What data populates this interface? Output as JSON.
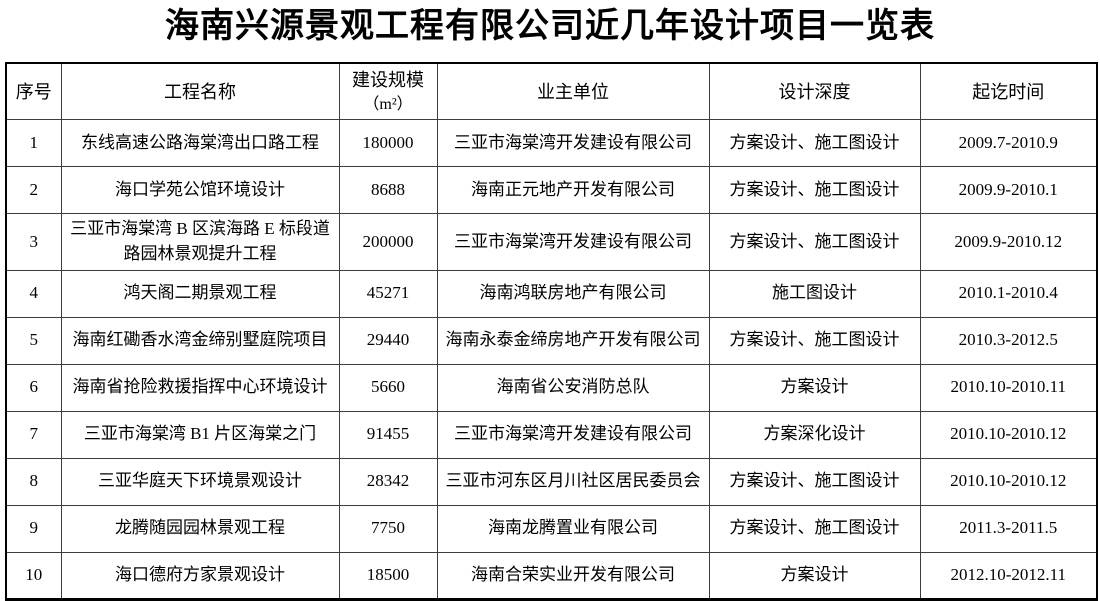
{
  "title": "海南兴源景观工程有限公司近几年设计项目一览表",
  "table": {
    "headers": [
      {
        "label": "序号"
      },
      {
        "label": "工程名称"
      },
      {
        "label": "建设规模",
        "sub": "（m²）"
      },
      {
        "label": "业主单位"
      },
      {
        "label": "设计深度"
      },
      {
        "label": "起讫时间"
      }
    ],
    "rows": [
      {
        "no": "1",
        "name": "东线高速公路海棠湾出口路工程",
        "scale": "180000",
        "owner": "三亚市海棠湾开发建设有限公司",
        "depth": "方案设计、施工图设计",
        "period": "2009.7-2010.9"
      },
      {
        "no": "2",
        "name": "海口学苑公馆环境设计",
        "scale": "8688",
        "owner": "海南正元地产开发有限公司",
        "depth": "方案设计、施工图设计",
        "period": "2009.9-2010.1"
      },
      {
        "no": "3",
        "name": "三亚市海棠湾 B 区滨海路 E 标段道路园林景观提升工程",
        "scale": "200000",
        "owner": "三亚市海棠湾开发建设有限公司",
        "depth": "方案设计、施工图设计",
        "period": "2009.9-2010.12"
      },
      {
        "no": "4",
        "name": "鸿天阁二期景观工程",
        "scale": "45271",
        "owner": "海南鸿联房地产有限公司",
        "depth": "施工图设计",
        "period": "2010.1-2010.4"
      },
      {
        "no": "5",
        "name": "海南红磡香水湾金缔别墅庭院项目",
        "scale": "29440",
        "owner": "海南永泰金缔房地产开发有限公司",
        "depth": "方案设计、施工图设计",
        "period": "2010.3-2012.5"
      },
      {
        "no": "6",
        "name": "海南省抢险救援指挥中心环境设计",
        "scale": "5660",
        "owner": "海南省公安消防总队",
        "depth": "方案设计",
        "period": "2010.10-2010.11"
      },
      {
        "no": "7",
        "name": "三亚市海棠湾 B1 片区海棠之门",
        "scale": "91455",
        "owner": "三亚市海棠湾开发建设有限公司",
        "depth": "方案深化设计",
        "period": "2010.10-2010.12"
      },
      {
        "no": "8",
        "name": "三亚华庭天下环境景观设计",
        "scale": "28342",
        "owner": "三亚市河东区月川社区居民委员会",
        "depth": "方案设计、施工图设计",
        "period": "2010.10-2010.12"
      },
      {
        "no": "9",
        "name": "龙腾随园园林景观工程",
        "scale": "7750",
        "owner": "海南龙腾置业有限公司",
        "depth": "方案设计、施工图设计",
        "period": "2011.3-2011.5"
      },
      {
        "no": "10",
        "name": "海口德府方家景观设计",
        "scale": "18500",
        "owner": "海南合荣实业开发有限公司",
        "depth": "方案设计",
        "period": "2012.10-2012.11"
      }
    ]
  }
}
